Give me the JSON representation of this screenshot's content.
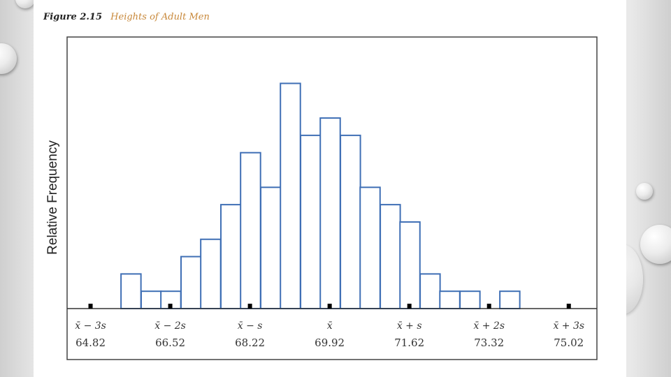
{
  "caption": {
    "figure_label": "Figure 2.15",
    "title": "Heights of Adult Men"
  },
  "colors": {
    "bar_stroke": "#3f6fb5",
    "bar_fill": "#ffffff",
    "axis": "#333333",
    "tick_marker": "#000000",
    "caption_title": "#c8883a"
  },
  "chart_data": {
    "type": "bar",
    "title": "Heights of Adult Men",
    "xlabel": "",
    "ylabel": "Relative Frequency",
    "y_ticks_shown": false,
    "grid": false,
    "bin_width": 0.425,
    "bin_starts": [
      65.47,
      65.9,
      66.32,
      66.75,
      67.17,
      67.6,
      68.02,
      68.45,
      68.87,
      69.3,
      69.72,
      70.15,
      70.57,
      71.0,
      71.42,
      71.85,
      72.27,
      72.7,
      73.12,
      73.55,
      73.97,
      74.4
    ],
    "values": [
      2,
      1,
      1,
      3,
      4,
      6,
      9,
      7,
      13,
      10,
      11,
      10,
      7,
      6,
      5,
      2,
      1,
      1,
      0,
      1,
      0,
      0
    ],
    "xlim": [
      64.32,
      75.62
    ],
    "ylim": [
      0,
      13.3
    ],
    "x_tick_values": [
      64.82,
      66.52,
      68.22,
      69.92,
      71.62,
      73.32,
      75.02
    ],
    "x_tick_names": [
      "x̄ − 3s",
      "x̄ − 2s",
      "x̄ − s",
      "x̄",
      "x̄ + s",
      "x̄ + 2s",
      "x̄ + 3s"
    ],
    "x_tick_labels": [
      "64.82",
      "66.52",
      "68.22",
      "69.92",
      "71.62",
      "73.32",
      "75.02"
    ]
  }
}
